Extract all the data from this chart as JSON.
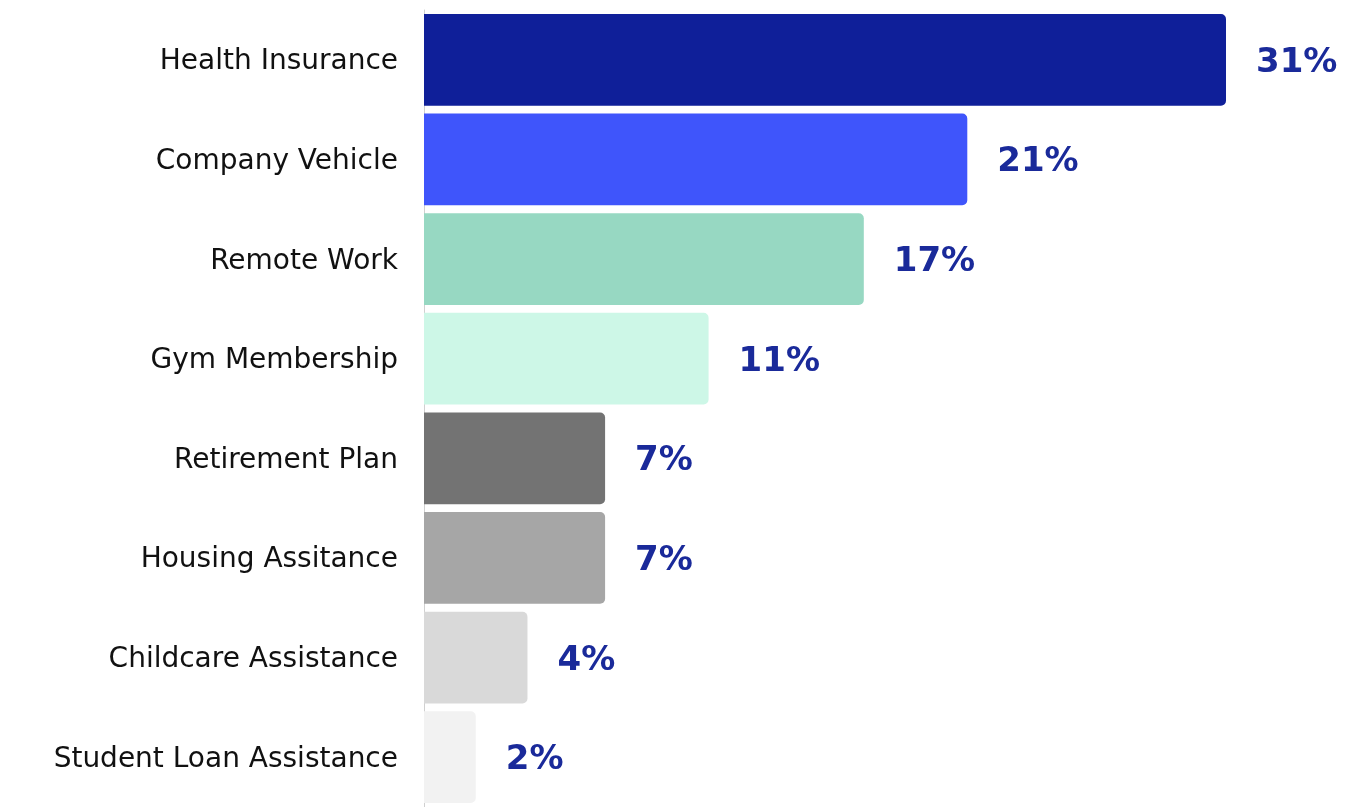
{
  "chart_data": {
    "type": "bar",
    "orientation": "horizontal",
    "categories": [
      "Health Insurance",
      "Company Vehicle",
      "Remote Work",
      "Gym Membership",
      "Retirement Plan",
      "Housing Assitance",
      "Childcare Assistance",
      "Student Loan Assistance"
    ],
    "values": [
      31,
      21,
      17,
      11,
      7,
      7,
      4,
      2
    ],
    "value_labels": [
      "31%",
      "21%",
      "17%",
      "11%",
      "7%",
      "7%",
      "4%",
      "2%"
    ],
    "colors": [
      "#0f1f99",
      "#3f55fb",
      "#97d8c2",
      "#cdf7e7",
      "#737373",
      "#a6a6a6",
      "#d9d9d9",
      "#f2f2f2"
    ],
    "grid": false
  }
}
